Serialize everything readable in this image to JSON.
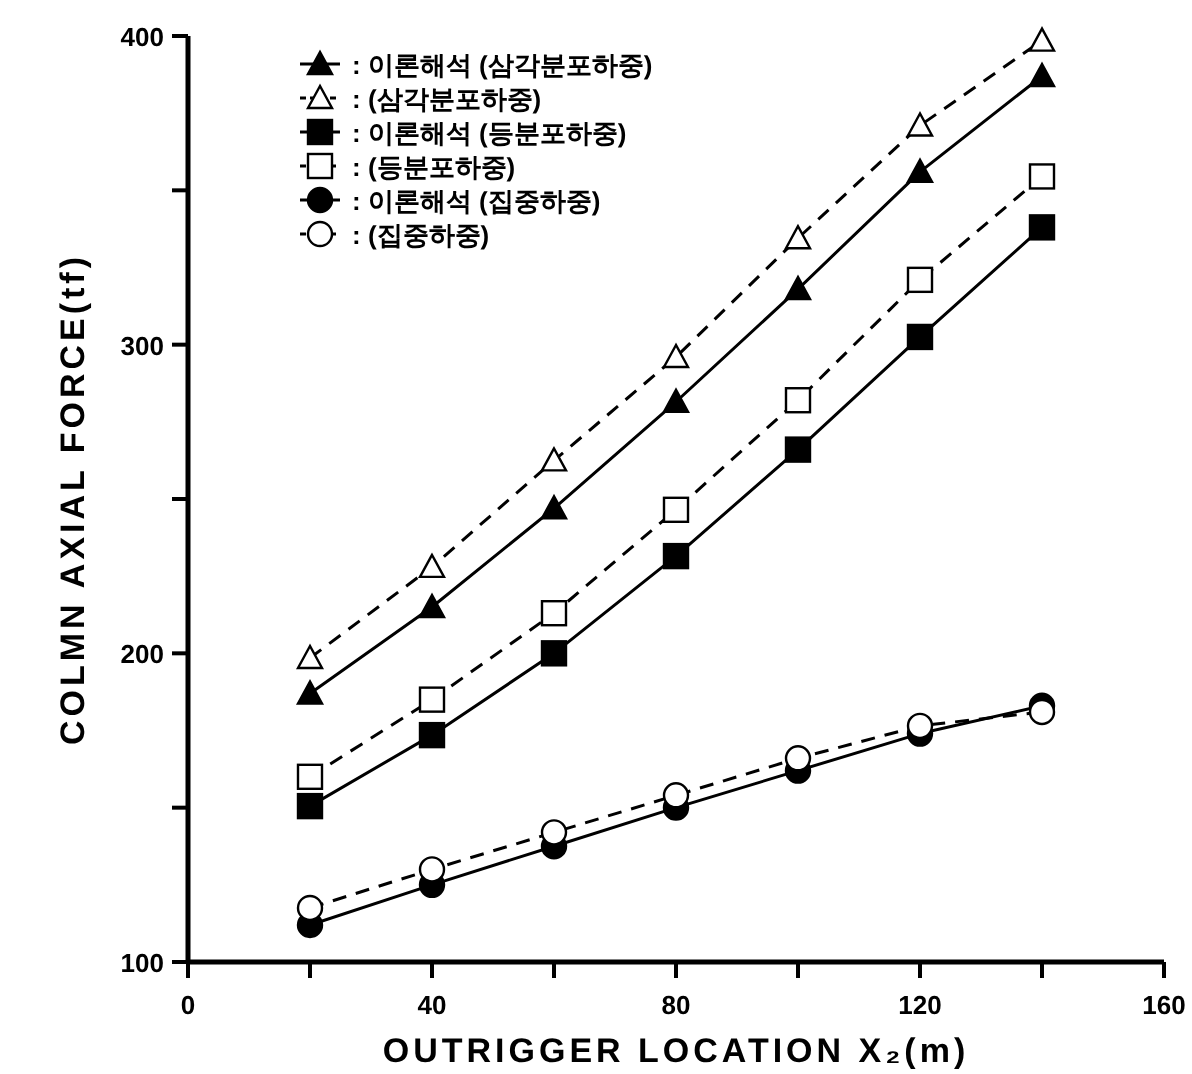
{
  "chart_data": {
    "type": "line",
    "xlabel": "OUTRIGGER LOCATION X₂(m)",
    "ylabel": "COLMN AXIAL FORCE(tf)",
    "x": [
      20,
      40,
      60,
      80,
      100,
      120,
      140
    ],
    "xlim": [
      0,
      160
    ],
    "ylim": [
      100,
      400
    ],
    "xticks": [
      0,
      {
        "value": 20,
        "label": null
      },
      40,
      {
        "value": 60,
        "label": null
      },
      80,
      {
        "value": 100,
        "label": null
      },
      120,
      {
        "value": 140,
        "label": null
      },
      160
    ],
    "yticks": [
      100,
      {
        "value": 150,
        "label": null
      },
      200,
      {
        "value": 250,
        "label": null
      },
      300,
      {
        "value": 350,
        "label": null
      },
      400
    ],
    "legend": "top left",
    "series": [
      {
        "name": ": 이론해석 (삼각분포하중)",
        "color": "#000000",
        "marker": "triangle",
        "line_style": "solid",
        "values": [
          187,
          215,
          247,
          281.5,
          318,
          356,
          387
        ]
      },
      {
        "name": ": (삼각분포하중)",
        "color": "#000000",
        "marker": "triangle",
        "line_style": "dashed",
        "values": [
          198.5,
          228,
          262.5,
          296,
          334.5,
          371,
          398.5
        ]
      },
      {
        "name": ": 이론해석 (등분포하중)",
        "color": "#000000",
        "marker": "square",
        "line_style": "solid",
        "values": [
          150.5,
          173.5,
          200,
          231.5,
          266,
          302.5,
          338
        ]
      },
      {
        "name": ": (등분포하중)",
        "color": "#000000",
        "marker": "square",
        "line_style": "dashed",
        "values": [
          160,
          185,
          213,
          246.5,
          282,
          321,
          354.5
        ]
      },
      {
        "name": ": 이론해석 (집중하중)",
        "color": "#000000",
        "marker": "circle",
        "line_style": "solid",
        "values": [
          112,
          125,
          137.5,
          150,
          162,
          174,
          183
        ]
      },
      {
        "name": ": (집중하중)",
        "color": "#000000",
        "marker": "circle",
        "line_style": "dashed",
        "values": [
          117.5,
          130,
          142,
          154,
          166,
          176.5,
          181
        ]
      }
    ]
  }
}
